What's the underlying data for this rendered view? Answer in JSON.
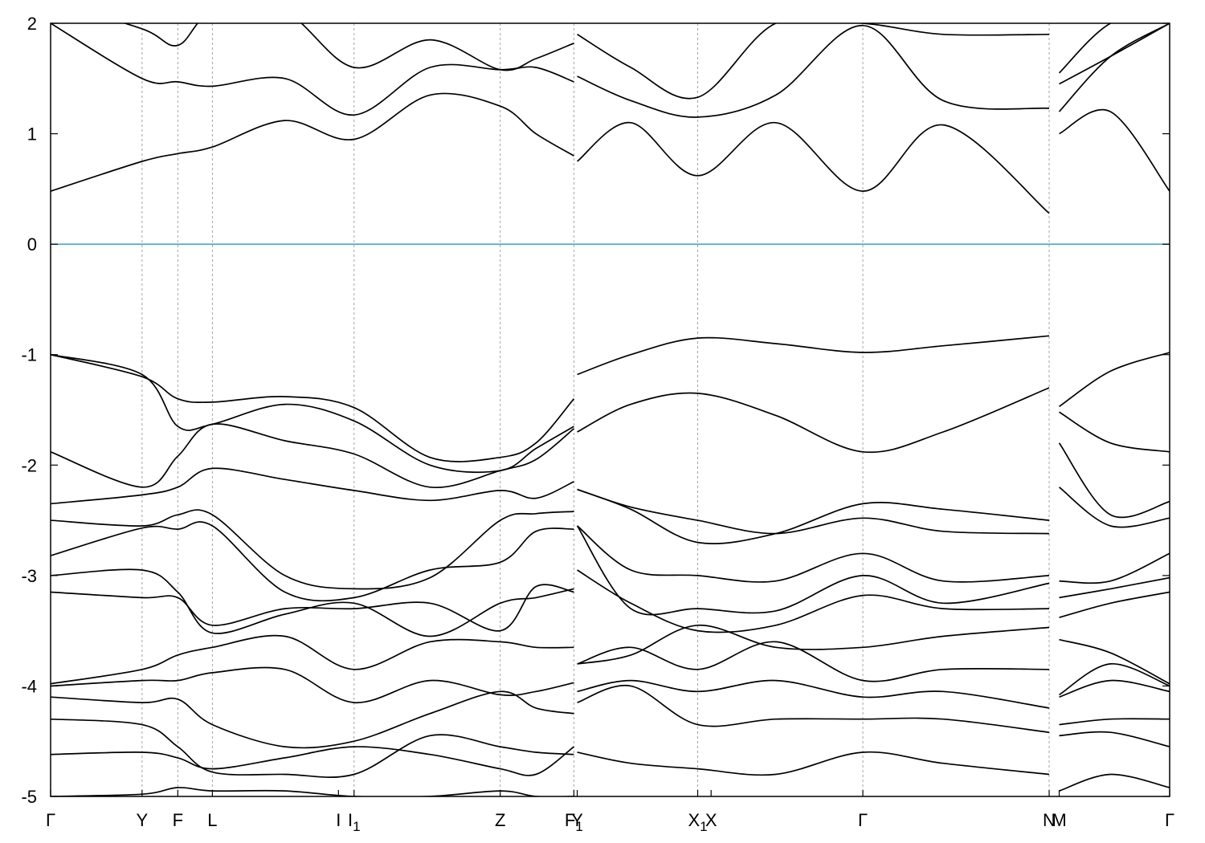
{
  "chart_data": {
    "type": "line",
    "title": "",
    "xlabel": "",
    "ylabel": "",
    "ylim": [
      -5,
      2
    ],
    "yticks": [
      -5,
      -4,
      -3,
      -2,
      -1,
      0,
      1,
      2
    ],
    "ytick_labels": [
      "-5",
      "-4",
      "-3",
      "-2",
      "-1",
      "0",
      "1",
      "2"
    ],
    "grid": "vertical dashed lines at high-symmetry points",
    "fermi_level": 0,
    "colors": {
      "bands": "#000000",
      "fermi": "#4aa8c8",
      "kpath": "#999999"
    },
    "xlim": [
      0,
      10.03
    ],
    "kpoints": [
      {
        "label": "Γ",
        "x": 0.0
      },
      {
        "label": "Y",
        "x": 0.82
      },
      {
        "label": "F",
        "x": 1.14
      },
      {
        "label": "L",
        "x": 1.45
      },
      {
        "label": "I",
        "x": 2.58
      },
      {
        "label": "I",
        "sub": "1",
        "x": 2.72
      },
      {
        "label": "Z",
        "x": 4.03
      },
      {
        "label": "F",
        "sub": "1",
        "x": 4.69
      },
      {
        "label": "Y",
        "x": 4.72
      },
      {
        "label": "X",
        "sub": "1",
        "x": 5.8
      },
      {
        "label": "X",
        "x": 5.92
      },
      {
        "label": "Γ",
        "x": 7.28
      },
      {
        "label": "N",
        "x": 8.95
      },
      {
        "label": "M",
        "x": 9.04
      },
      {
        "label": "Γ",
        "x": 10.03
      }
    ],
    "kline_x": [
      0.82,
      1.14,
      1.45,
      2.72,
      4.03,
      4.69,
      5.8,
      7.28,
      8.95
    ],
    "segments": [
      {
        "name": "Γ-Y-F-L-I | I1-Z-F1",
        "x": [
          0.0,
          0.82,
          1.14,
          1.45,
          2.1,
          2.72,
          3.4,
          4.03,
          4.35,
          4.69
        ],
        "bands": [
          [
            -5.0,
            -4.98,
            -4.92,
            -4.95,
            -4.95,
            -5.0,
            -5.0,
            -4.95,
            -5.0,
            -5.0
          ],
          [
            -4.62,
            -4.6,
            -4.65,
            -4.75,
            -4.65,
            -4.55,
            -4.62,
            -4.75,
            -4.8,
            -4.55
          ],
          [
            -4.3,
            -4.35,
            -4.55,
            -4.78,
            -4.8,
            -4.8,
            -4.45,
            -4.55,
            -4.6,
            -4.62
          ],
          [
            -4.1,
            -4.15,
            -4.12,
            -4.35,
            -4.55,
            -4.5,
            -4.25,
            -4.05,
            -4.2,
            -4.25
          ],
          [
            -4.0,
            -3.95,
            -3.95,
            -3.88,
            -3.85,
            -4.15,
            -3.95,
            -4.08,
            -4.05,
            -3.97
          ],
          [
            -3.98,
            -3.85,
            -3.72,
            -3.65,
            -3.55,
            -3.85,
            -3.6,
            -3.6,
            -3.65,
            -3.65
          ],
          [
            -3.15,
            -3.2,
            -3.2,
            -3.45,
            -3.3,
            -3.3,
            -3.25,
            -3.5,
            -3.1,
            -3.15
          ],
          [
            -3.0,
            -2.95,
            -3.15,
            -3.52,
            -3.35,
            -3.25,
            -3.55,
            -3.25,
            -3.2,
            -3.12
          ],
          [
            -2.82,
            -2.57,
            -2.58,
            -2.55,
            -3.15,
            -3.2,
            -2.95,
            -2.88,
            -2.6,
            -2.58
          ],
          [
            -2.5,
            -2.55,
            -2.45,
            -2.45,
            -3.0,
            -3.12,
            -3.02,
            -2.5,
            -2.44,
            -2.42
          ],
          [
            -2.35,
            -2.27,
            -2.2,
            -2.03,
            -2.13,
            -2.23,
            -2.32,
            -2.23,
            -2.3,
            -2.15
          ],
          [
            -1.88,
            -2.2,
            -1.92,
            -1.63,
            -1.78,
            -1.9,
            -2.2,
            -2.05,
            -1.95,
            -1.67
          ],
          [
            -1.0,
            -1.18,
            -1.65,
            -1.63,
            -1.45,
            -1.6,
            -2.0,
            -2.05,
            -1.85,
            -1.65
          ],
          [
            -1.0,
            -1.2,
            -1.4,
            -1.43,
            -1.38,
            -1.48,
            -1.93,
            -1.93,
            -1.8,
            -1.4
          ],
          [
            0.48,
            0.75,
            0.82,
            0.88,
            1.12,
            0.95,
            1.35,
            1.25,
            1.0,
            0.8
          ],
          [
            2.0,
            1.5,
            1.47,
            1.43,
            1.5,
            1.17,
            1.6,
            1.58,
            1.6,
            1.47
          ],
          [
            2.2,
            1.95,
            1.8,
            2.1,
            2.1,
            1.6,
            1.85,
            1.58,
            1.68,
            1.82
          ]
        ]
      },
      {
        "name": "Y-X1 | X-Γ-N",
        "x": [
          4.72,
          5.2,
          5.8,
          6.5,
          7.28,
          8.0,
          8.95
        ],
        "bands": [
          [
            -4.6,
            -4.7,
            -4.75,
            -4.8,
            -4.6,
            -4.7,
            -4.8
          ],
          [
            -4.15,
            -4.0,
            -4.35,
            -4.3,
            -4.3,
            -4.3,
            -4.42
          ],
          [
            -4.05,
            -3.95,
            -4.05,
            -3.95,
            -4.1,
            -4.05,
            -4.2
          ],
          [
            -3.8,
            -3.65,
            -3.85,
            -3.6,
            -3.95,
            -3.85,
            -3.85
          ],
          [
            -3.8,
            -3.72,
            -3.45,
            -3.65,
            -3.65,
            -3.55,
            -3.47
          ],
          [
            -2.95,
            -3.25,
            -3.5,
            -3.45,
            -3.18,
            -3.3,
            -3.3
          ],
          [
            -2.55,
            -3.3,
            -3.3,
            -3.32,
            -3.0,
            -3.25,
            -3.07
          ],
          [
            -2.55,
            -2.95,
            -3.0,
            -3.05,
            -2.8,
            -3.05,
            -3.0
          ],
          [
            -2.22,
            -2.38,
            -2.5,
            -2.62,
            -2.48,
            -2.6,
            -2.62
          ],
          [
            -2.22,
            -2.4,
            -2.7,
            -2.62,
            -2.35,
            -2.4,
            -2.5
          ],
          [
            -1.7,
            -1.45,
            -1.35,
            -1.55,
            -1.88,
            -1.7,
            -1.3
          ],
          [
            -1.18,
            -1.0,
            -0.85,
            -0.9,
            -0.98,
            -0.92,
            -0.83
          ],
          [
            0.75,
            1.1,
            0.62,
            1.1,
            0.48,
            1.08,
            0.28
          ],
          [
            1.52,
            1.3,
            1.15,
            1.35,
            1.98,
            1.3,
            1.23
          ],
          [
            1.9,
            1.6,
            1.33,
            2.0,
            2.0,
            1.9,
            1.9
          ]
        ]
      },
      {
        "name": "M-Γ",
        "x": [
          9.04,
          9.5,
          10.03
        ],
        "bands": [
          [
            -4.95,
            -4.8,
            -4.92
          ],
          [
            -4.45,
            -4.42,
            -4.55
          ],
          [
            -4.35,
            -4.3,
            -4.3
          ],
          [
            -4.1,
            -3.95,
            -4.05
          ],
          [
            -4.08,
            -3.8,
            -4.0
          ],
          [
            -3.58,
            -3.7,
            -3.98
          ],
          [
            -3.38,
            -3.25,
            -3.15
          ],
          [
            -3.2,
            -3.12,
            -3.02
          ],
          [
            -3.05,
            -3.05,
            -2.8
          ],
          [
            -2.2,
            -2.55,
            -2.48
          ],
          [
            -1.8,
            -2.45,
            -2.33
          ],
          [
            -1.52,
            -1.8,
            -1.88
          ],
          [
            -1.47,
            -1.15,
            -0.98
          ],
          [
            1.0,
            1.2,
            0.48
          ],
          [
            1.2,
            1.7,
            2.0
          ],
          [
            1.45,
            1.7,
            2.0
          ],
          [
            1.55,
            2.0,
            2.1
          ]
        ]
      }
    ]
  }
}
